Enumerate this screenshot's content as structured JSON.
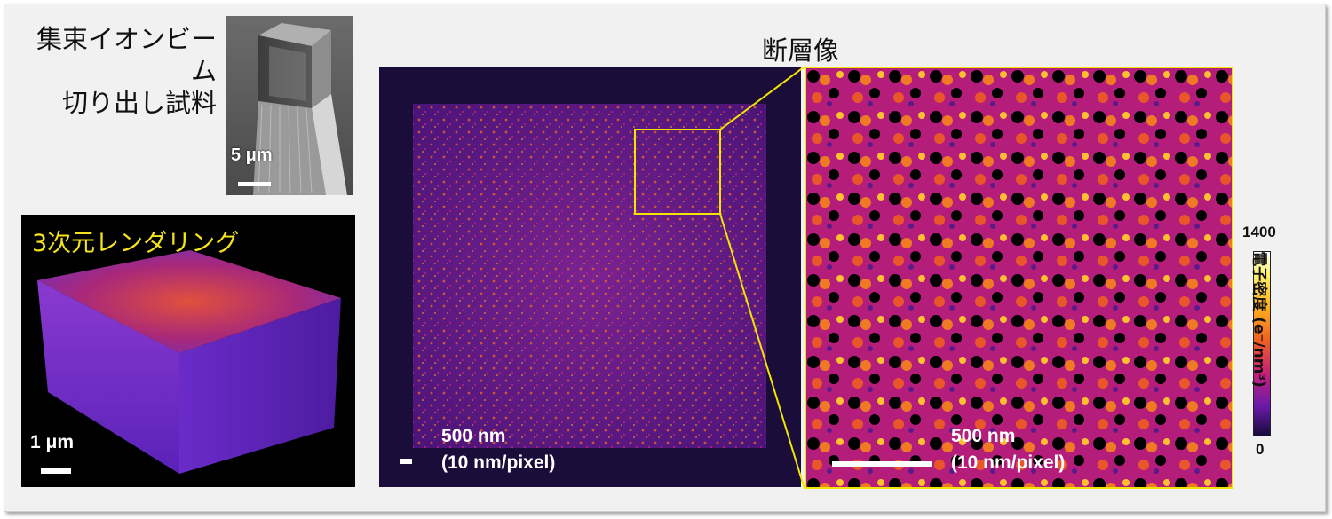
{
  "fib": {
    "line1": "集束イオンビーム",
    "line2": "切り出し試料"
  },
  "sem": {
    "scale_label": "5 μm"
  },
  "render": {
    "title": "3次元レンダリング",
    "scale_label": "1 μm"
  },
  "tomogram": {
    "title": "断層像",
    "scale_label": "500 nm",
    "pixel_size": "(10 nm/pixel)"
  },
  "zoom": {
    "scale_label": "500 nm",
    "pixel_size": "(10 nm/pixel)"
  },
  "colorbar": {
    "max": "1400",
    "min": "0",
    "label": "電子密度 (e⁻/nm³)"
  },
  "colors": {
    "highlight_yellow": "#f2e600",
    "render_title": "#f4e21d"
  }
}
